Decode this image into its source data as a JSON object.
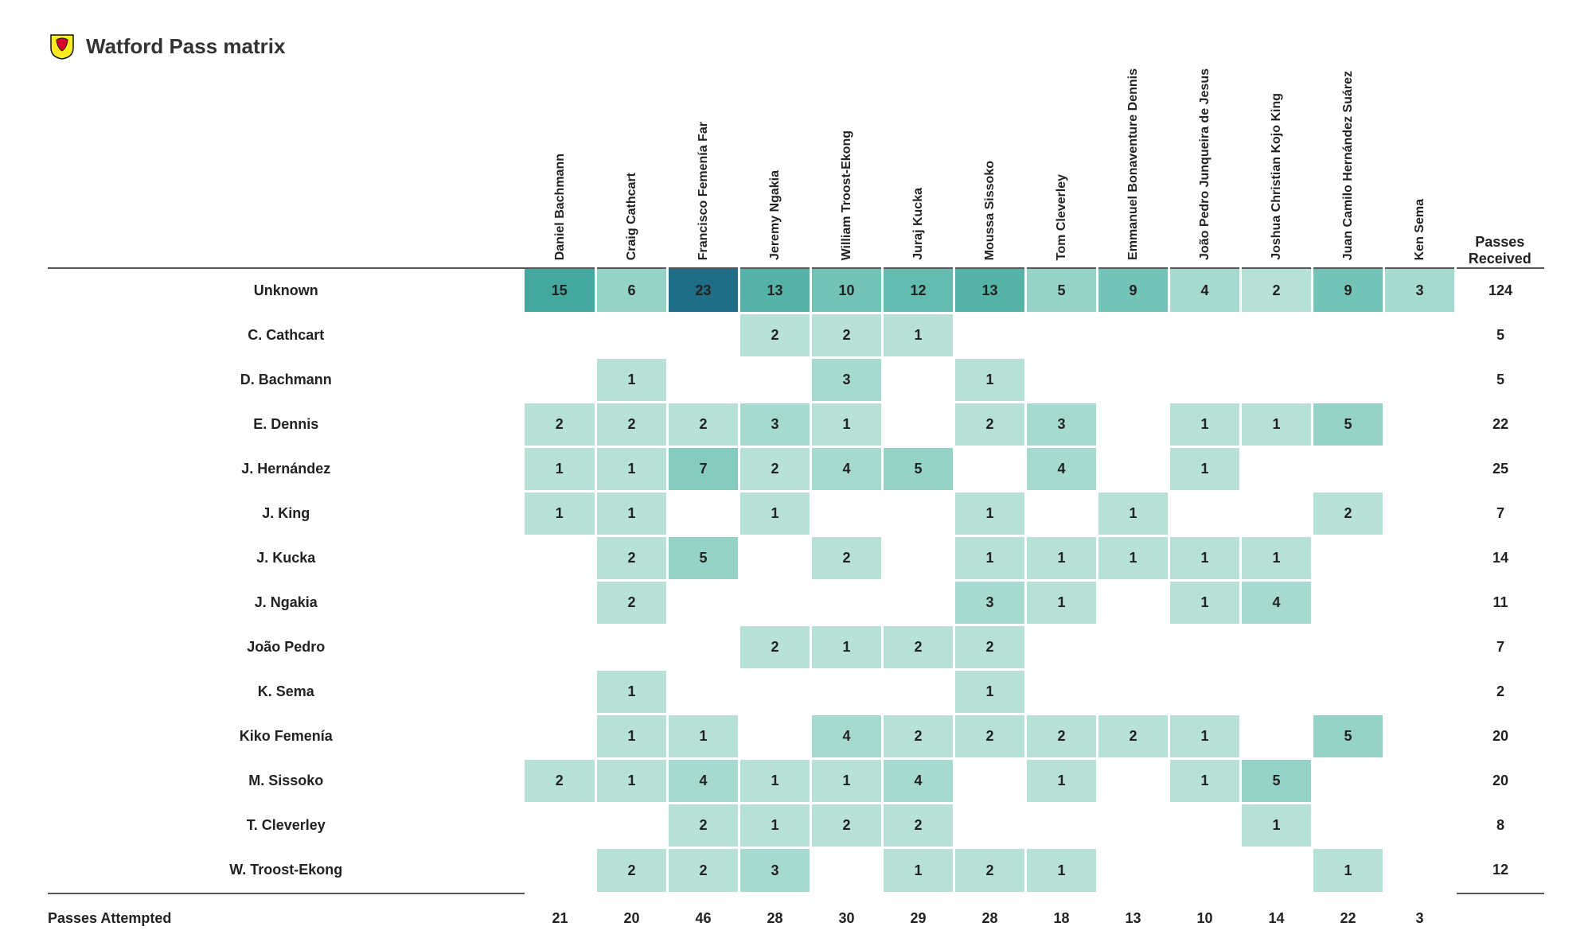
{
  "title": "Watford Pass matrix",
  "logo_colors": {
    "outer": "#fbec21",
    "inner": "#d8002d",
    "stroke": "#111111"
  },
  "heat_palette": {
    "empty": "#ffffff",
    "steps": [
      "#c8e6df",
      "#b7e0d7",
      "#a7dacf",
      "#96d3c7",
      "#85cbbf",
      "#74c3b7",
      "#64bbaf",
      "#54b2a6",
      "#45a89e",
      "#379d95",
      "#2b928b",
      "#207a87",
      "#1f6d86"
    ],
    "max_value_for_scale": 23
  },
  "columns": [
    "Daniel Bachmann",
    "Craig Cathcart",
    "Francisco Femenía Far",
    "Jeremy Ngakia",
    "William Troost-Ekong",
    "Juraj Kucka",
    "Moussa Sissoko",
    "Tom Cleverley",
    "Emmanuel Bonaventure Dennis",
    "João Pedro Junqueira de Jesus",
    "Joshua Christian Kojo King",
    "Juan Camilo Hernández Suárez",
    "Ken Sema"
  ],
  "row_total_header": "Passes Received",
  "col_total_header": "Passes Attempted",
  "rows": [
    {
      "label": "Unknown",
      "cells": [
        15,
        6,
        23,
        13,
        10,
        12,
        13,
        5,
        9,
        4,
        2,
        9,
        3
      ],
      "total": 124
    },
    {
      "label": "C. Cathcart",
      "cells": [
        null,
        null,
        null,
        2,
        2,
        1,
        null,
        null,
        null,
        null,
        null,
        null,
        null
      ],
      "total": 5
    },
    {
      "label": "D. Bachmann",
      "cells": [
        null,
        1,
        null,
        null,
        3,
        null,
        1,
        null,
        null,
        null,
        null,
        null,
        null
      ],
      "total": 5
    },
    {
      "label": "E. Dennis",
      "cells": [
        2,
        2,
        2,
        3,
        1,
        null,
        2,
        3,
        null,
        1,
        1,
        5,
        null
      ],
      "total": 22
    },
    {
      "label": "J. Hernández",
      "cells": [
        1,
        1,
        7,
        2,
        4,
        5,
        null,
        4,
        null,
        1,
        null,
        null,
        null
      ],
      "total": 25
    },
    {
      "label": "J. King",
      "cells": [
        1,
        1,
        null,
        1,
        null,
        null,
        1,
        null,
        1,
        null,
        null,
        2,
        null
      ],
      "total": 7
    },
    {
      "label": "J. Kucka",
      "cells": [
        null,
        2,
        5,
        null,
        2,
        null,
        1,
        1,
        1,
        1,
        1,
        null,
        null
      ],
      "total": 14
    },
    {
      "label": "J. Ngakia",
      "cells": [
        null,
        2,
        null,
        null,
        null,
        null,
        3,
        1,
        null,
        1,
        4,
        null,
        null
      ],
      "total": 11
    },
    {
      "label": "João Pedro",
      "cells": [
        null,
        null,
        null,
        2,
        1,
        2,
        2,
        null,
        null,
        null,
        null,
        null,
        null
      ],
      "total": 7
    },
    {
      "label": "K. Sema",
      "cells": [
        null,
        1,
        null,
        null,
        null,
        null,
        1,
        null,
        null,
        null,
        null,
        null,
        null
      ],
      "total": 2
    },
    {
      "label": "Kiko Femenía",
      "cells": [
        null,
        1,
        1,
        null,
        4,
        2,
        2,
        2,
        2,
        1,
        null,
        5,
        null
      ],
      "total": 20
    },
    {
      "label": "M. Sissoko",
      "cells": [
        2,
        1,
        4,
        1,
        1,
        4,
        null,
        1,
        null,
        1,
        5,
        null,
        null
      ],
      "total": 20
    },
    {
      "label": "T. Cleverley",
      "cells": [
        null,
        null,
        2,
        1,
        2,
        2,
        null,
        null,
        null,
        null,
        1,
        null,
        null
      ],
      "total": 8
    },
    {
      "label": "W. Troost-Ekong",
      "cells": [
        null,
        2,
        2,
        3,
        null,
        1,
        2,
        1,
        null,
        null,
        null,
        1,
        null
      ],
      "total": 12
    }
  ],
  "col_totals": [
    21,
    20,
    46,
    28,
    30,
    29,
    28,
    18,
    13,
    10,
    14,
    22,
    3
  ],
  "cell_font_size": 18,
  "header_font_size": 16
}
